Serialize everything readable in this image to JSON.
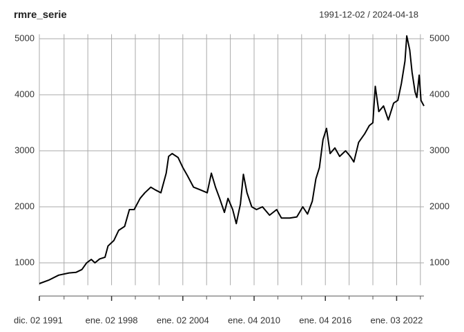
{
  "chart_data": {
    "type": "line",
    "title": "rmre_serie",
    "subtitle": "1991-12-02 / 2024-04-18",
    "x": [
      1991.92,
      1992.7,
      1993.55,
      1994.42,
      1995.0,
      1995.5,
      1995.9,
      1996.3,
      1996.6,
      1997.0,
      1997.45,
      1997.7,
      1998.2,
      1998.6,
      1999.1,
      1999.5,
      1999.9,
      2000.4,
      2000.8,
      2001.3,
      2001.7,
      2002.15,
      2002.6,
      2002.8,
      2003.1,
      2003.6,
      2004.0,
      2004.4,
      2004.9,
      2005.5,
      2006.05,
      2006.4,
      2006.75,
      2007.1,
      2007.5,
      2007.8,
      2008.2,
      2008.5,
      2008.85,
      2009.1,
      2009.4,
      2009.8,
      2010.2,
      2010.7,
      2011.3,
      2011.9,
      2012.3,
      2013.0,
      2013.6,
      2014.1,
      2014.5,
      2014.9,
      2015.2,
      2015.5,
      2015.8,
      2016.1,
      2016.4,
      2016.8,
      2017.2,
      2017.7,
      2018.1,
      2018.4,
      2018.8,
      2019.3,
      2019.7,
      2020.0,
      2020.2,
      2020.5,
      2020.9,
      2021.3,
      2021.75,
      2022.1,
      2022.4,
      2022.7,
      2022.85,
      2023.1,
      2023.3,
      2023.55,
      2023.7,
      2023.9,
      2024.05,
      2024.3
    ],
    "series": [
      {
        "name": "rmre_serie",
        "color": "#000000",
        "values": [
          630,
          690,
          780,
          820,
          830,
          880,
          1000,
          1060,
          1000,
          1070,
          1100,
          1300,
          1400,
          1580,
          1650,
          1950,
          1950,
          2150,
          2250,
          2350,
          2300,
          2250,
          2600,
          2900,
          2950,
          2880,
          2700,
          2550,
          2350,
          2300,
          2250,
          2600,
          2350,
          2150,
          1900,
          2150,
          1950,
          1700,
          2050,
          2580,
          2250,
          2000,
          1950,
          2000,
          1850,
          1950,
          1800,
          1800,
          1820,
          2000,
          1870,
          2100,
          2500,
          2700,
          3200,
          3400,
          2950,
          3050,
          2900,
          3000,
          2900,
          2800,
          3150,
          3300,
          3450,
          3500,
          4150,
          3700,
          3800,
          3550,
          3850,
          3900,
          4200,
          4600,
          5050,
          4800,
          4400,
          4050,
          3950,
          4350,
          3900,
          3800
        ]
      }
    ],
    "xlim": [
      1991.92,
      2024.3
    ],
    "xticks": [
      {
        "value": 1991.92,
        "label": "dic. 02 1991"
      },
      {
        "value": 1998.0,
        "label": "ene. 02 1998"
      },
      {
        "value": 2004.0,
        "label": "ene. 02 2004"
      },
      {
        "value": 2010.0,
        "label": "ene. 04 2010"
      },
      {
        "value": 2016.0,
        "label": "ene. 04 2016"
      },
      {
        "value": 2022.0,
        "label": "ene. 03 2022"
      }
    ],
    "xgrid": [
      1991.92,
      1994,
      1996,
      1998,
      2000,
      2002,
      2004,
      2006,
      2008,
      2010,
      2012,
      2014,
      2016,
      2018,
      2020,
      2022,
      2024
    ],
    "ylim": [
      600,
      5080
    ],
    "yticks": [
      1000,
      2000,
      3000,
      4000,
      5000
    ],
    "grid": true
  }
}
